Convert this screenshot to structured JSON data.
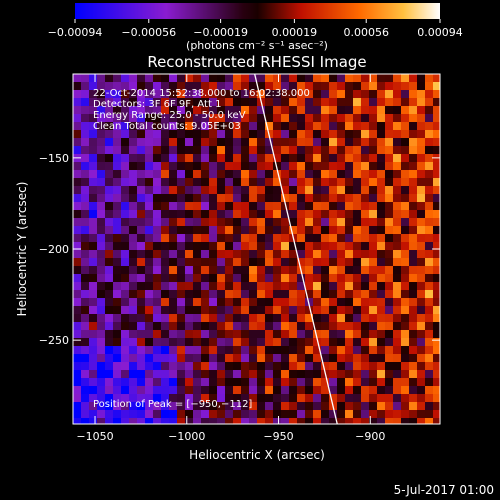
{
  "chart_data": {
    "type": "heatmap",
    "title": "Reconstructed RHESSI Image",
    "xlabel": "Heliocentric X (arcsec)",
    "ylabel": "Heliocentric Y (arcsec)",
    "xlim": [
      -1062,
      -862
    ],
    "ylim": [
      -296,
      -104
    ],
    "x_ticks": [
      {
        "value": -1050,
        "label": "−1050"
      },
      {
        "value": -1000,
        "label": "−1000"
      },
      {
        "value": -950,
        "label": "−950"
      },
      {
        "value": -900,
        "label": "−900"
      }
    ],
    "y_ticks": [
      {
        "value": -150,
        "label": "−150"
      },
      {
        "value": -200,
        "label": "−200"
      },
      {
        "value": -250,
        "label": "−250"
      }
    ],
    "colorbar": {
      "min": -0.00094,
      "max": 0.00094,
      "tick_values": [
        -0.00094,
        -0.00056,
        -0.00019,
        0.00019,
        0.00056,
        0.00094
      ],
      "tick_labels": [
        "−0.00094",
        "−0.00056",
        "−0.00019",
        "0.00019",
        "0.00056",
        "0.00094"
      ],
      "units_label": "(photons cm⁻² s⁻¹ asec⁻²)"
    },
    "annotations": [
      "22-Oct-2014 15:52:38.000 to 16:02:38.000",
      "Detectors: 3F 6F 9F, Att 1",
      "Energy Range: 25.0 - 50.0 keV",
      "Clean    Total counts: 9.05E+03"
    ],
    "peak_label": "Position of Peak = [−950,−112]",
    "peak_position": [
      -950,
      -112
    ],
    "limb_line": [
      [
        -963,
        -104
      ],
      [
        -918,
        -296
      ]
    ],
    "colors": {
      "background": "#000000",
      "limb": "#ffffff",
      "colormap": [
        "#0000ff",
        "#9a20c8",
        "#300018",
        "#c01000",
        "#ff6a00",
        "#ffc040",
        "#ffffff"
      ]
    }
  },
  "footer": {
    "date": "5-Jul-2017 01:00"
  }
}
